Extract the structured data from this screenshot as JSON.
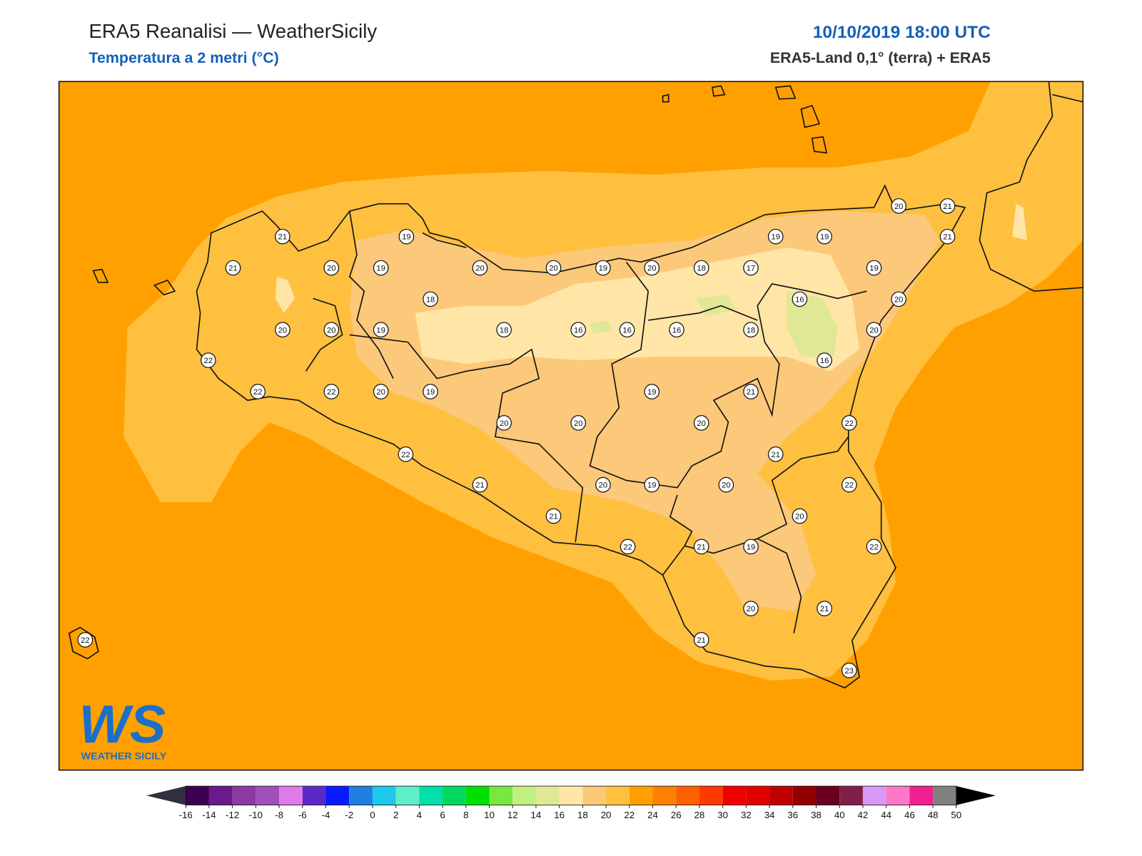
{
  "header": {
    "title": "ERA5 Reanalisi — WeatherSicily",
    "subtitle": "Temperatura a 2 metri (°C)",
    "datetime": "10/10/2019 18:00 UTC",
    "source": "ERA5-Land 0,1° (terra) + ERA5"
  },
  "logo": {
    "mark": "WS",
    "name": "WEATHER SICILY"
  },
  "stations": {
    "values": [
      21,
      21,
      20,
      19,
      19,
      18,
      20,
      20,
      19,
      18,
      16,
      16,
      16,
      18,
      22,
      22,
      22,
      20,
      19,
      20,
      20,
      19,
      20,
      18,
      17,
      19,
      19,
      19,
      20,
      21,
      21,
      20,
      16,
      20,
      16,
      21,
      19,
      20,
      20,
      20,
      22,
      22,
      21,
      21,
      20,
      19,
      20,
      22,
      21,
      20,
      22,
      21,
      19,
      22,
      20,
      21,
      21,
      23,
      22
    ]
  },
  "colorbar": {
    "ticks": [
      -16,
      -14,
      -12,
      -10,
      -8,
      -6,
      -4,
      -2,
      0,
      2,
      4,
      6,
      8,
      10,
      12,
      14,
      16,
      18,
      20,
      22,
      24,
      26,
      28,
      30,
      32,
      34,
      36,
      38,
      40,
      42,
      44,
      46,
      48,
      50
    ],
    "colors": [
      "#3d0050",
      "#6a1a8a",
      "#8a3aa0",
      "#a050b8",
      "#e07ae8",
      "#5a2ac8",
      "#0a1aff",
      "#1f80e0",
      "#1ec8e8",
      "#5eeec8",
      "#00e0a8",
      "#00d860",
      "#00e000",
      "#78e840",
      "#c0f080",
      "#e0e896",
      "#ffe6a6",
      "#fcc87a",
      "#ffc040",
      "#ffa000",
      "#ff8000",
      "#ff6000",
      "#ff3a00",
      "#f00000",
      "#e00000",
      "#c00000",
      "#900000",
      "#6a0020",
      "#80204a",
      "#d898f8",
      "#ff78c8",
      "#f02090",
      "#808080"
    ],
    "under_color": "#303040",
    "over_color": "#000000"
  }
}
